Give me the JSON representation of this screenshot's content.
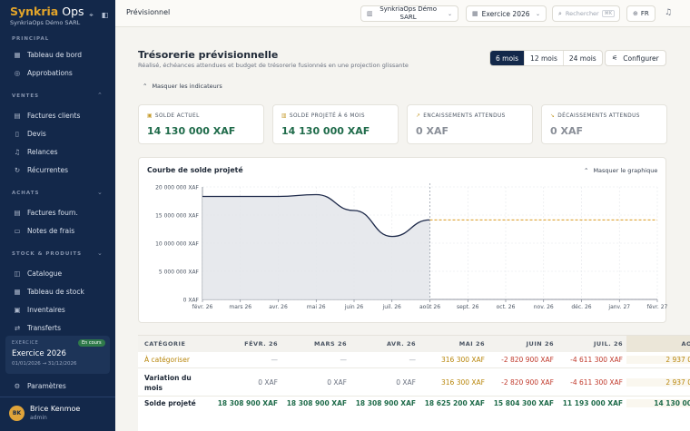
{
  "sidebar": {
    "brand_main": "Synkria",
    "brand_rest": "Ops",
    "company": "SynkriaOps Démo SARL",
    "sections": {
      "principal": "PRINCIPAL",
      "ventes": "VENTES",
      "achats": "ACHATS",
      "stock": "STOCK & PRODUITS"
    },
    "items": {
      "tableau": "Tableau de bord",
      "approbations": "Approbations",
      "factures_clients": "Factures clients",
      "devis": "Devis",
      "relances": "Relances",
      "recurrentes": "Récurrentes",
      "factures_fourn": "Factures fourn.",
      "notes_frais": "Notes de frais",
      "catalogue": "Catalogue",
      "tableau_stock": "Tableau de stock",
      "inventaires": "Inventaires",
      "transferts": "Transferts",
      "parametres": "Paramètres"
    },
    "exercice": {
      "label": "EXERCICE",
      "badge": "En cours",
      "title": "Exercice 2026",
      "dates": "01/01/2026 → 31/12/2026"
    },
    "user": {
      "initials": "BK",
      "name": "Brice Kenmoe",
      "role": "admin"
    }
  },
  "topbar": {
    "title": "Prévisionnel",
    "company_select": "SynkriaOps Démo SARL",
    "exercise_select": "Exercice 2026",
    "search_placeholder": "Rechercher",
    "search_kbd": "⌘K",
    "lang": "FR"
  },
  "page": {
    "title": "Trésorerie prévisionnelle",
    "subtitle": "Réalisé, échéances attendues et budget de trésorerie fusionnés en une projection glissante",
    "range_options": [
      "6 mois",
      "12 mois",
      "24 mois"
    ],
    "configure": "Configurer",
    "hide_indicators": "Masquer les indicateurs"
  },
  "kpis": [
    {
      "label": "SOLDE ACTUEL",
      "value": "14 130 000 XAF",
      "icon": "wallet-icon"
    },
    {
      "label": "SOLDE PROJETÉ À 6 MOIS",
      "value": "14 130 000 XAF",
      "icon": "bank-icon"
    },
    {
      "label": "ENCAISSEMENTS ATTENDUS",
      "value": "0 XAF",
      "icon": "trend-up-icon"
    },
    {
      "label": "DÉCAISSEMENTS ATTENDUS",
      "value": "0 XAF",
      "icon": "trend-down-icon"
    }
  ],
  "chart": {
    "title": "Courbe de solde projeté",
    "hide_label": "Masquer le graphique"
  },
  "chart_data": {
    "type": "area",
    "x": [
      "févr. 26",
      "mars 26",
      "avr. 26",
      "mai 26",
      "juin 26",
      "juil. 26",
      "août 26",
      "sept. 26",
      "oct. 26",
      "nov. 26",
      "déc. 26",
      "janv. 27",
      "févr. 27"
    ],
    "actual": [
      18308900,
      18308900,
      18308900,
      18625200,
      15804300,
      11193000,
      14130000
    ],
    "projected": [
      14130000,
      14130000,
      14130000,
      14130000,
      14130000,
      14130000,
      14130000
    ],
    "y_ticks": [
      "0 XAF",
      "5 000 000 XAF",
      "10 000 000 XAF",
      "15 000 000 XAF",
      "20 000 000 XAF"
    ],
    "ylim": [
      0,
      20000000
    ],
    "grid": true,
    "colors": {
      "line": "#1e2a4a",
      "fill": "#e3e5ea",
      "projection": "#d99a1e",
      "today": "#9ca3af"
    }
  },
  "table": {
    "headers": [
      "CATÉGORIE",
      "FÉVR. 26",
      "MARS 26",
      "AVR. 26",
      "MAI 26",
      "JUIN 26",
      "JUIL. 26",
      "AO"
    ],
    "rows": [
      {
        "label": "À catégoriser",
        "cells": [
          "—",
          "—",
          "—",
          "316 300 XAF",
          "-2 820 900 XAF",
          "-4 611 300 XAF",
          "2 937 0"
        ]
      },
      {
        "label": "Variation du mois",
        "cells": [
          "0 XAF",
          "0 XAF",
          "0 XAF",
          "316 300 XAF",
          "-2 820 900 XAF",
          "-4 611 300 XAF",
          "2 937 0"
        ]
      },
      {
        "label": "Solde projeté",
        "cells": [
          "18 308 900 XAF",
          "18 308 900 XAF",
          "18 308 900 XAF",
          "18 625 200 XAF",
          "15 804 300 XAF",
          "11 193 000 XAF",
          "14 130 00"
        ]
      }
    ]
  }
}
